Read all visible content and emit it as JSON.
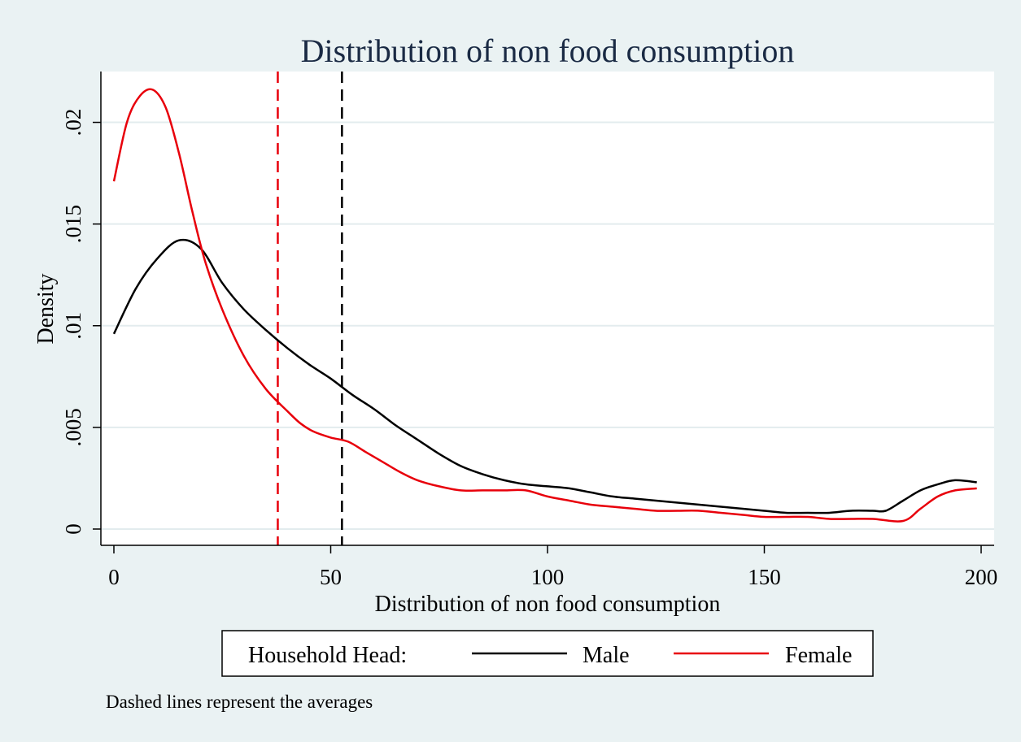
{
  "chart_data": {
    "type": "line",
    "title": "Distribution of non food consumption",
    "xlabel": "Distribution of non food consumption",
    "ylabel": "Density",
    "xlim": [
      -3,
      203
    ],
    "ylim": [
      -0.0008,
      0.0225
    ],
    "x_ticks": [
      0,
      50,
      100,
      150,
      200
    ],
    "x_tick_labels": [
      "0",
      "50",
      "100",
      "150",
      "200"
    ],
    "y_ticks": [
      0,
      0.005,
      0.01,
      0.015,
      0.02
    ],
    "y_tick_labels": [
      "0",
      ".005",
      ".01",
      ".015",
      ".02"
    ],
    "grid": true,
    "legend": {
      "title": "Household Head:",
      "placement": "bottom"
    },
    "series": [
      {
        "name": "Male",
        "color": "#000000",
        "x": [
          0,
          5,
          10,
          15,
          20,
          25,
          30,
          35,
          40,
          45,
          50,
          55,
          60,
          65,
          70,
          75,
          80,
          85,
          90,
          95,
          100,
          105,
          110,
          115,
          120,
          125,
          130,
          135,
          140,
          145,
          150,
          155,
          160,
          165,
          170,
          175,
          178,
          182,
          186,
          190,
          194,
          199
        ],
        "y": [
          0.0096,
          0.0118,
          0.0133,
          0.0142,
          0.0138,
          0.0121,
          0.0108,
          0.0098,
          0.0089,
          0.0081,
          0.0074,
          0.0066,
          0.0059,
          0.0051,
          0.0044,
          0.0037,
          0.0031,
          0.0027,
          0.0024,
          0.0022,
          0.0021,
          0.002,
          0.0018,
          0.0016,
          0.0015,
          0.0014,
          0.0013,
          0.0012,
          0.0011,
          0.001,
          0.0009,
          0.0008,
          0.0008,
          0.0008,
          0.0009,
          0.0009,
          0.0009,
          0.0014,
          0.0019,
          0.0022,
          0.0024,
          0.0023
        ]
      },
      {
        "name": "Female",
        "color": "#e8000b",
        "x": [
          0,
          3,
          6,
          9,
          12,
          15,
          18,
          21,
          25,
          30,
          35,
          40,
          43,
          46,
          50,
          54,
          58,
          62,
          66,
          70,
          75,
          80,
          85,
          90,
          95,
          100,
          105,
          110,
          115,
          120,
          125,
          130,
          135,
          140,
          145,
          150,
          155,
          160,
          165,
          170,
          175,
          182,
          186,
          190,
          194,
          199
        ],
        "y": [
          0.0171,
          0.02,
          0.0213,
          0.0216,
          0.0207,
          0.0185,
          0.0157,
          0.0132,
          0.0108,
          0.0085,
          0.0069,
          0.0058,
          0.0052,
          0.0048,
          0.0045,
          0.0043,
          0.0038,
          0.0033,
          0.0028,
          0.0024,
          0.0021,
          0.0019,
          0.0019,
          0.0019,
          0.0019,
          0.0016,
          0.0014,
          0.0012,
          0.0011,
          0.001,
          0.0009,
          0.0009,
          0.0009,
          0.0008,
          0.0007,
          0.0006,
          0.0006,
          0.0006,
          0.0005,
          0.0005,
          0.0005,
          0.0004,
          0.001,
          0.0016,
          0.0019,
          0.002
        ]
      }
    ],
    "reference_lines": [
      {
        "axis": "x",
        "value": 37.8,
        "color": "#e8000b",
        "style": "dashed",
        "series": "Female"
      },
      {
        "axis": "x",
        "value": 52.6,
        "color": "#000000",
        "style": "dashed",
        "series": "Male"
      }
    ],
    "note": "Dashed lines represent the averages"
  }
}
